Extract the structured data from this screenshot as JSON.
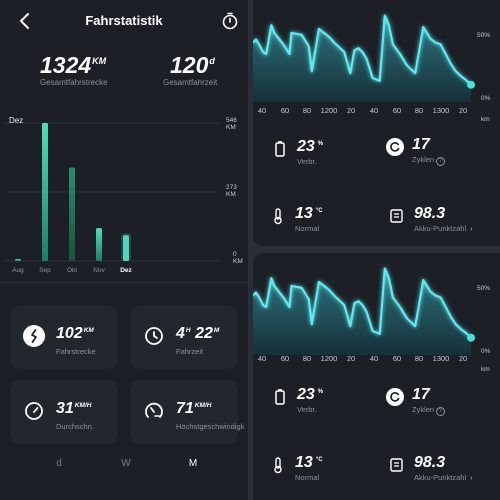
{
  "header": {
    "title": "Fahrstatistik",
    "back_icon": "chevron-left-icon",
    "timer_icon": "timer-icon"
  },
  "summary": {
    "distance": {
      "value": "1324",
      "unit": "KM",
      "label": "Gesamtfahrstrecke"
    },
    "duration": {
      "value": "120",
      "unit": "d",
      "label": "Gesamtfahrzeit"
    }
  },
  "monthly_chart": {
    "selected_label": "Dez",
    "y_ticks": [
      "546 KM",
      "273 KM",
      "0 KM"
    ],
    "x_labels": [
      "Aug",
      "Sep",
      "Okt",
      "Nov",
      "Dez"
    ]
  },
  "stats": [
    {
      "value": "102",
      "unit": "KM",
      "label": "Fahrstrecke",
      "icon": "route-icon"
    },
    {
      "value": "4",
      "unit": "H",
      "value2": "22",
      "unit2": "M",
      "label": "Fahrzeit",
      "icon": "clock-icon"
    },
    {
      "value": "31",
      "unit": "KM/H",
      "label": "Durchschn.",
      "icon": "speedometer-icon"
    },
    {
      "value": "71",
      "unit": "KM/H",
      "label": "Höchstgeschwindigk",
      "icon": "speed-max-icon"
    }
  ],
  "period_tabs": [
    {
      "label": "d",
      "active": false
    },
    {
      "label": "W",
      "active": false
    },
    {
      "label": "M",
      "active": true
    }
  ],
  "battery_chart": {
    "y_labels": [
      "50%",
      "0%"
    ],
    "x_labels": [
      "40",
      "60",
      "80",
      "1200",
      "20",
      "40",
      "60",
      "80",
      "1300",
      "20"
    ],
    "x_unit": "km"
  },
  "battery_panels": [
    {
      "consumption": {
        "value": "23",
        "unit": "%",
        "label": "Verbr."
      },
      "cycles": {
        "value": "17",
        "label": "Zyklen",
        "help_icon": "?"
      },
      "temperature": {
        "value": "13",
        "unit": "°C",
        "label": "Normal"
      },
      "score": {
        "value": "98.3",
        "label": "Akku-Punktzahl",
        "chevron": "›"
      }
    },
    {
      "consumption": {
        "value": "23",
        "unit": "%",
        "label": "Verbr."
      },
      "cycles": {
        "value": "17",
        "label": "Zyklen",
        "help_icon": "?"
      },
      "temperature": {
        "value": "13",
        "unit": "°C",
        "label": "Normal"
      },
      "score": {
        "value": "98.3",
        "label": "Akku-Punktzahl",
        "chevron": "›"
      }
    }
  ],
  "chart_data": [
    {
      "type": "bar",
      "categories": [
        "Aug",
        "Sep",
        "Okt",
        "Nov",
        "Dez"
      ],
      "values": [
        8,
        546,
        370,
        130,
        102
      ],
      "ylim": [
        0,
        546
      ],
      "ylabel": "",
      "selected": "Dez"
    },
    {
      "type": "area",
      "x": [
        0,
        3,
        6,
        10,
        13,
        18,
        21,
        30,
        36,
        38,
        48,
        55,
        58,
        65,
        70,
        75,
        80,
        90,
        96,
        100,
        104,
        108,
        112,
        118,
        125,
        130,
        134,
        138,
        145,
        152,
        160,
        168,
        175,
        180,
        185,
        190,
        195,
        200,
        205,
        210,
        215
      ],
      "values": [
        62,
        65,
        60,
        52,
        50,
        80,
        72,
        60,
        50,
        72,
        70,
        58,
        32,
        76,
        72,
        68,
        62,
        52,
        30,
        54,
        56,
        52,
        45,
        25,
        22,
        90,
        80,
        60,
        50,
        38,
        30,
        78,
        66,
        62,
        60,
        50,
        40,
        32,
        27,
        23,
        18
      ],
      "ylim": [
        0,
        100
      ],
      "note_axis": "y labels 50% / 0%"
    }
  ]
}
